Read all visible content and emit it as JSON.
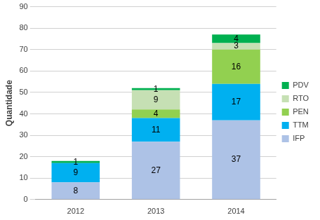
{
  "chart_data": {
    "type": "bar",
    "stacked": true,
    "y_label": "Quantidade",
    "categories": [
      "2012",
      "2013",
      "2014"
    ],
    "series": [
      {
        "name": "IFP",
        "color": "#adc2e6",
        "values": [
          8,
          27,
          37
        ]
      },
      {
        "name": "TTM",
        "color": "#00b0f0",
        "values": [
          9,
          11,
          17
        ]
      },
      {
        "name": "PEN",
        "color": "#92d050",
        "values": [
          null,
          4,
          16
        ]
      },
      {
        "name": "RTO",
        "color": "#c6e0b4",
        "values": [
          null,
          9,
          3
        ]
      },
      {
        "name": "PDV",
        "color": "#00b050",
        "values": [
          1,
          1,
          4
        ]
      }
    ],
    "ylim": [
      0,
      90
    ],
    "yticks": [
      0,
      10,
      20,
      30,
      40,
      50,
      60,
      70,
      80,
      90
    ],
    "grid": true,
    "legend": "right",
    "data_labels": true
  }
}
